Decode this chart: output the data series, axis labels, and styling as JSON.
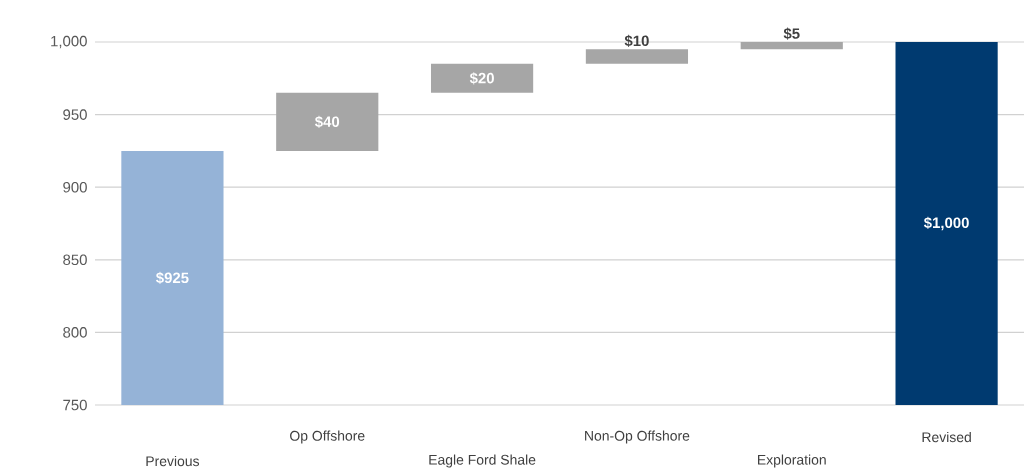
{
  "chart_data": {
    "type": "bar",
    "categories": [
      "Previous",
      "Op Offshore",
      "Eagle Ford Shale",
      "Non-Op Offshore",
      "Exploration",
      "Revised"
    ],
    "base": [
      750,
      925,
      965,
      985,
      995,
      750
    ],
    "values": [
      175,
      40,
      20,
      10,
      5,
      250
    ],
    "value_labels": [
      "$925",
      "$40",
      "$20",
      "$10",
      "$5",
      "$1,000"
    ],
    "colors": [
      "#95b3d7",
      "#a6a6a6",
      "#a6a6a6",
      "#a6a6a6",
      "#a6a6a6",
      "#003a70"
    ],
    "ylim": [
      750,
      1000
    ],
    "yticks": [
      750,
      800,
      850,
      900,
      950,
      {
        "value": 1000,
        "label": "1,000"
      }
    ],
    "grid": "y"
  }
}
